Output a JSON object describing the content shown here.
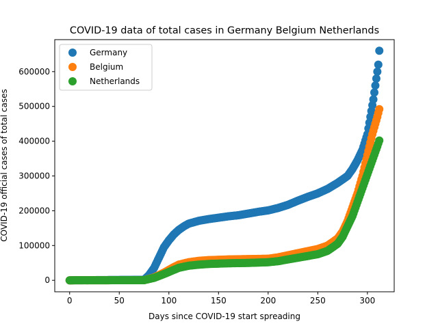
{
  "chart_data": {
    "type": "scatter",
    "title": "COVID-19 data of total cases in Germany Belgium Netherlands",
    "xlabel": "Days since COVID-19 start spreading",
    "ylabel": "COVID-19 official cases of total cases",
    "xlim": [
      -15,
      327
    ],
    "ylim": [
      -33000,
      692000
    ],
    "xticks": [
      0,
      50,
      100,
      150,
      200,
      250,
      300
    ],
    "yticks": [
      0,
      100000,
      200000,
      300000,
      400000,
      500000,
      600000
    ],
    "grid": false,
    "legend_position": "top-left",
    "days": 313,
    "series": [
      {
        "name": "Germany",
        "color": "#1f77b4",
        "anchors": [
          [
            0,
            0
          ],
          [
            75,
            1500
          ],
          [
            80,
            15000
          ],
          [
            85,
            35000
          ],
          [
            90,
            65000
          ],
          [
            95,
            95000
          ],
          [
            100,
            115000
          ],
          [
            105,
            132000
          ],
          [
            110,
            145000
          ],
          [
            115,
            155000
          ],
          [
            120,
            163000
          ],
          [
            130,
            171000
          ],
          [
            140,
            176000
          ],
          [
            150,
            180000
          ],
          [
            160,
            184000
          ],
          [
            170,
            187000
          ],
          [
            180,
            192000
          ],
          [
            190,
            197000
          ],
          [
            200,
            201000
          ],
          [
            210,
            208000
          ],
          [
            220,
            217000
          ],
          [
            230,
            229000
          ],
          [
            240,
            240000
          ],
          [
            250,
            250000
          ],
          [
            260,
            263000
          ],
          [
            270,
            280000
          ],
          [
            280,
            300000
          ],
          [
            285,
            320000
          ],
          [
            290,
            345000
          ],
          [
            295,
            375000
          ],
          [
            300,
            420000
          ],
          [
            303,
            470000
          ],
          [
            306,
            520000
          ],
          [
            309,
            580000
          ],
          [
            311,
            620000
          ],
          [
            312,
            660000
          ]
        ]
      },
      {
        "name": "Belgium",
        "color": "#ff7f0e",
        "anchors": [
          [
            0,
            0
          ],
          [
            75,
            500
          ],
          [
            85,
            8000
          ],
          [
            95,
            22000
          ],
          [
            105,
            38000
          ],
          [
            110,
            45000
          ],
          [
            120,
            52000
          ],
          [
            130,
            56000
          ],
          [
            140,
            58000
          ],
          [
            160,
            60000
          ],
          [
            180,
            61000
          ],
          [
            200,
            62000
          ],
          [
            210,
            66000
          ],
          [
            220,
            72000
          ],
          [
            230,
            78000
          ],
          [
            240,
            84000
          ],
          [
            250,
            90000
          ],
          [
            260,
            100000
          ],
          [
            270,
            120000
          ],
          [
            275,
            140000
          ],
          [
            280,
            170000
          ],
          [
            285,
            210000
          ],
          [
            290,
            250000
          ],
          [
            295,
            300000
          ],
          [
            300,
            360000
          ],
          [
            305,
            420000
          ],
          [
            310,
            470000
          ],
          [
            312,
            492000
          ]
        ]
      },
      {
        "name": "Netherlands",
        "color": "#2ca02c",
        "anchors": [
          [
            0,
            0
          ],
          [
            75,
            500
          ],
          [
            85,
            7000
          ],
          [
            95,
            18000
          ],
          [
            105,
            30000
          ],
          [
            110,
            36000
          ],
          [
            120,
            42000
          ],
          [
            130,
            45000
          ],
          [
            140,
            47000
          ],
          [
            160,
            49000
          ],
          [
            180,
            50000
          ],
          [
            200,
            52000
          ],
          [
            210,
            55000
          ],
          [
            220,
            60000
          ],
          [
            230,
            65000
          ],
          [
            240,
            70000
          ],
          [
            250,
            75000
          ],
          [
            260,
            85000
          ],
          [
            270,
            105000
          ],
          [
            275,
            125000
          ],
          [
            280,
            155000
          ],
          [
            285,
            185000
          ],
          [
            290,
            225000
          ],
          [
            295,
            265000
          ],
          [
            300,
            305000
          ],
          [
            305,
            345000
          ],
          [
            310,
            385000
          ],
          [
            312,
            402000
          ]
        ]
      }
    ]
  }
}
